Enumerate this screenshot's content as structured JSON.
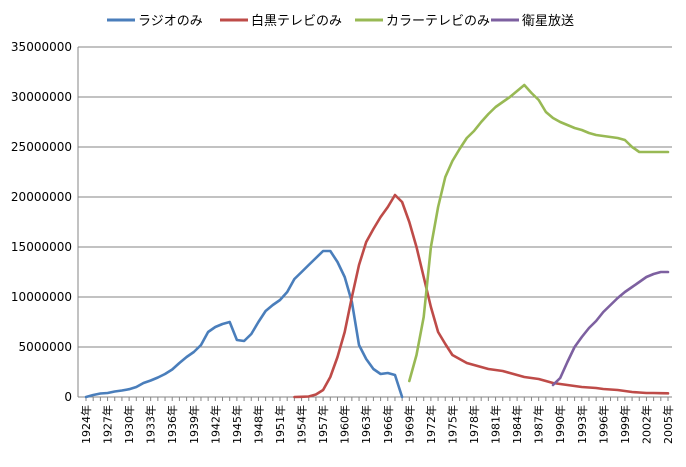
{
  "chart_data": {
    "type": "line",
    "title": "",
    "xlabel": "",
    "ylabel": "",
    "ylim": [
      0,
      35000000
    ],
    "yticks": [
      0,
      5000000,
      10000000,
      15000000,
      20000000,
      25000000,
      30000000,
      35000000
    ],
    "grid": true,
    "legend_position": "top",
    "x_start": 1924,
    "x_end": 2005,
    "x_tick_labels": [
      "1924年",
      "1927年",
      "1930年",
      "1933年",
      "1936年",
      "1939年",
      "1942年",
      "1945年",
      "1948年",
      "1951年",
      "1954年",
      "1957年",
      "1960年",
      "1963年",
      "1966年",
      "1969年",
      "1972年",
      "1975年",
      "1978年",
      "1981年",
      "1984年",
      "1987年",
      "1990年",
      "1993年",
      "1996年",
      "1999年",
      "2002年",
      "2005年"
    ],
    "series": [
      {
        "name": "ラジオのみ",
        "color": "#4a7ebb",
        "x": [
          1924,
          1925,
          1926,
          1927,
          1928,
          1929,
          1930,
          1931,
          1932,
          1933,
          1934,
          1935,
          1936,
          1937,
          1938,
          1939,
          1940,
          1941,
          1942,
          1943,
          1944,
          1945,
          1946,
          1947,
          1948,
          1949,
          1950,
          1951,
          1952,
          1953,
          1954,
          1955,
          1956,
          1957,
          1958,
          1959,
          1960,
          1961,
          1962,
          1963,
          1964,
          1965,
          1966,
          1967,
          1968
        ],
        "values": [
          0,
          200000,
          350000,
          400000,
          550000,
          650000,
          780000,
          1000000,
          1400000,
          1650000,
          1950000,
          2300000,
          2750000,
          3400000,
          4000000,
          4500000,
          5200000,
          6500000,
          7000000,
          7300000,
          7500000,
          5700000,
          5600000,
          6300000,
          7500000,
          8600000,
          9200000,
          9700000,
          10500000,
          11800000,
          12500000,
          13200000,
          13900000,
          14600000,
          14600000,
          13500000,
          12000000,
          9500000,
          5200000,
          3800000,
          2800000,
          2300000,
          2400000,
          2200000,
          0
        ]
      },
      {
        "name": "白黒テレビのみ",
        "color": "#be4b48",
        "x": [
          1953,
          1954,
          1955,
          1956,
          1957,
          1958,
          1959,
          1960,
          1961,
          1962,
          1963,
          1964,
          1965,
          1966,
          1967,
          1968,
          1969,
          1970,
          1971,
          1972,
          1973,
          1974,
          1975,
          1976,
          1977,
          1978,
          1979,
          1980,
          1981,
          1982,
          1983,
          1984,
          1985,
          1986,
          1987,
          1988,
          1989,
          1990,
          1991,
          1992,
          1993,
          1994,
          1995,
          1996,
          1997,
          1998,
          1999,
          2000,
          2001,
          2002,
          2003,
          2004,
          2005
        ],
        "values": [
          0,
          20000,
          50000,
          250000,
          700000,
          2000000,
          4000000,
          6500000,
          10000000,
          13200000,
          15500000,
          16800000,
          18000000,
          19000000,
          20200000,
          19500000,
          17500000,
          15000000,
          12000000,
          9000000,
          6500000,
          5300000,
          4200000,
          3800000,
          3400000,
          3200000,
          3000000,
          2800000,
          2700000,
          2600000,
          2400000,
          2200000,
          2000000,
          1900000,
          1800000,
          1600000,
          1400000,
          1300000,
          1200000,
          1100000,
          1000000,
          950000,
          900000,
          800000,
          750000,
          700000,
          600000,
          500000,
          450000,
          400000,
          400000,
          380000,
          370000
        ]
      },
      {
        "name": "カラーテレビのみ",
        "color": "#98b954",
        "x": [
          1969,
          1970,
          1971,
          1972,
          1973,
          1974,
          1975,
          1976,
          1977,
          1978,
          1979,
          1980,
          1981,
          1982,
          1983,
          1984,
          1985,
          1986,
          1987,
          1988,
          1989,
          1990,
          1991,
          1992,
          1993,
          1994,
          1995,
          1996,
          1997,
          1998,
          1999,
          2000,
          2001,
          2002,
          2003,
          2004,
          2005
        ],
        "values": [
          1600000,
          4200000,
          8000000,
          15000000,
          19000000,
          22000000,
          23600000,
          24800000,
          25900000,
          26600000,
          27500000,
          28300000,
          29000000,
          29500000,
          30000000,
          30600000,
          31200000,
          30400000,
          29700000,
          28500000,
          27900000,
          27500000,
          27200000,
          26900000,
          26700000,
          26400000,
          26200000,
          26100000,
          26000000,
          25900000,
          25700000,
          25000000,
          24500000,
          24500000,
          24500000,
          24500000,
          24500000
        ]
      },
      {
        "name": "衛星放送",
        "color": "#7d60a0",
        "x": [
          1989,
          1990,
          1991,
          1992,
          1993,
          1994,
          1995,
          1996,
          1997,
          1998,
          1999,
          2000,
          2001,
          2002,
          2003,
          2004,
          2005
        ],
        "values": [
          1200000,
          1900000,
          3500000,
          5000000,
          6000000,
          6900000,
          7600000,
          8500000,
          9200000,
          9900000,
          10500000,
          11000000,
          11500000,
          12000000,
          12300000,
          12500000,
          12500000
        ]
      }
    ]
  }
}
